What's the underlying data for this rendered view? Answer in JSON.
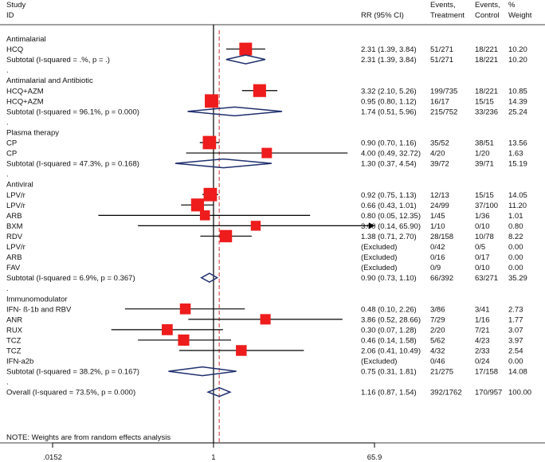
{
  "chart_data": {
    "type": "forest",
    "x_scale": "log",
    "x_ticks": [
      {
        "value": 0.0152,
        "label": ".0152"
      },
      {
        "value": 1,
        "label": "1"
      },
      {
        "value": 65.9,
        "label": "65.9"
      }
    ],
    "xlim": [
      0.0152,
      65.9
    ],
    "overall_estimate": 1.16,
    "headers": {
      "study_line1": "Study",
      "study_line2": "ID",
      "rr": "RR (95% CI)",
      "events_t_line1": "Events,",
      "events_t_line2": "Treatment",
      "events_c_line1": "Events,",
      "events_c_line2": "Control",
      "weight_line1": "%",
      "weight_line2": "Weight"
    },
    "footnote": "NOTE: Weights are from random effects analysis",
    "colors": {
      "box": "#ee1c1c",
      "diamond": "#1f2f6e",
      "null_line": "#000000",
      "overall_line": "#cc2a2a"
    },
    "rows": [
      {
        "kind": "group",
        "label": "Antimalarial"
      },
      {
        "kind": "study",
        "label": "HCQ",
        "rr": 2.31,
        "lo": 1.39,
        "hi": 3.84,
        "text": "2.31 (1.39, 3.84)",
        "events_t": "51/271",
        "events_c": "18/221",
        "weight": "10.20"
      },
      {
        "kind": "subtotal",
        "label": "Subtotal  (I-squared = .%, p = .)",
        "rr": 2.31,
        "lo": 1.39,
        "hi": 3.84,
        "text": "2.31 (1.39, 3.84)",
        "events_t": "51/271",
        "events_c": "18/221",
        "weight": "10.20"
      },
      {
        "kind": "dot",
        "label": "."
      },
      {
        "kind": "group",
        "label": "Antimalarial and Antibiotic"
      },
      {
        "kind": "study",
        "label": "HCQ+AZM",
        "rr": 3.32,
        "lo": 2.1,
        "hi": 5.26,
        "text": "3.32 (2.10, 5.26)",
        "events_t": "199/735",
        "events_c": "18/221",
        "weight": "10.85"
      },
      {
        "kind": "study",
        "label": "HCQ+AZM",
        "rr": 0.95,
        "lo": 0.8,
        "hi": 1.12,
        "text": "0.95 (0.80, 1.12)",
        "events_t": "16/17",
        "events_c": "15/15",
        "weight": "14.39"
      },
      {
        "kind": "subtotal",
        "label": "Subtotal  (I-squared = 96.1%, p = 0.000)",
        "rr": 1.74,
        "lo": 0.51,
        "hi": 5.96,
        "text": "1.74 (0.51, 5.96)",
        "events_t": "215/752",
        "events_c": "33/236",
        "weight": "25.24"
      },
      {
        "kind": "dot",
        "label": "."
      },
      {
        "kind": "group",
        "label": "Plasma therapy"
      },
      {
        "kind": "study",
        "label": "CP",
        "rr": 0.9,
        "lo": 0.7,
        "hi": 1.16,
        "text": "0.90 (0.70, 1.16)",
        "events_t": "35/52",
        "events_c": "38/51",
        "weight": "13.56"
      },
      {
        "kind": "study",
        "label": "CP",
        "rr": 4.0,
        "lo": 0.49,
        "hi": 32.72,
        "text": "4.00 (0.49, 32.72)",
        "events_t": "4/20",
        "events_c": "1/20",
        "weight": "1.63"
      },
      {
        "kind": "subtotal",
        "label": "Subtotal  (I-squared = 47.3%, p = 0.168)",
        "rr": 1.3,
        "lo": 0.37,
        "hi": 4.54,
        "text": "1.30 (0.37, 4.54)",
        "events_t": "39/72",
        "events_c": "39/71",
        "weight": "15.19"
      },
      {
        "kind": "dot",
        "label": "."
      },
      {
        "kind": "group",
        "label": "Antiviral"
      },
      {
        "kind": "study",
        "label": "LPV/r",
        "rr": 0.92,
        "lo": 0.75,
        "hi": 1.13,
        "text": "0.92 (0.75, 1.13)",
        "events_t": "12/13",
        "events_c": "15/15",
        "weight": "14.05"
      },
      {
        "kind": "study",
        "label": "LPV/r",
        "rr": 0.66,
        "lo": 0.43,
        "hi": 1.01,
        "text": "0.66 (0.43, 1.01)",
        "events_t": "24/99",
        "events_c": "37/100",
        "weight": "11.20"
      },
      {
        "kind": "study",
        "label": "ARB",
        "rr": 0.8,
        "lo": 0.05,
        "hi": 12.35,
        "text": "0.80 (0.05, 12.35)",
        "events_t": "1/45",
        "events_c": "1/36",
        "weight": "1.01"
      },
      {
        "kind": "study",
        "label": "BXM",
        "rr": 3.0,
        "lo": 0.14,
        "hi": 65.9,
        "text": "3.00 (0.14, 65.90)",
        "events_t": "1/10",
        "events_c": "0/10",
        "weight": "0.80",
        "arrow": true
      },
      {
        "kind": "study",
        "label": "RDV",
        "rr": 1.38,
        "lo": 0.71,
        "hi": 2.7,
        "text": "1.38 (0.71, 2.70)",
        "events_t": "28/158",
        "events_c": "10/78",
        "weight": "8.22"
      },
      {
        "kind": "study",
        "label": "LPV/r",
        "text": "(Excluded)",
        "events_t": "0/42",
        "events_c": "0/5",
        "weight": "0.00"
      },
      {
        "kind": "study",
        "label": "ARB",
        "text": "(Excluded)",
        "events_t": "0/16",
        "events_c": "0/17",
        "weight": "0.00"
      },
      {
        "kind": "study",
        "label": "FAV",
        "text": "(Excluded)",
        "events_t": "0/9",
        "events_c": "0/10",
        "weight": "0.00"
      },
      {
        "kind": "subtotal",
        "label": "Subtotal  (I-squared = 6.9%, p = 0.367)",
        "rr": 0.9,
        "lo": 0.73,
        "hi": 1.1,
        "text": "0.90 (0.73, 1.10)",
        "events_t": "66/392",
        "events_c": "63/271",
        "weight": "35.29"
      },
      {
        "kind": "dot",
        "label": "."
      },
      {
        "kind": "group",
        "label": "Immunomodulator"
      },
      {
        "kind": "study",
        "label": "IFN- ß-1b and RBV",
        "rr": 0.48,
        "lo": 0.1,
        "hi": 2.26,
        "text": "0.48 (0.10, 2.26)",
        "events_t": "3/86",
        "events_c": "3/41",
        "weight": "2.73"
      },
      {
        "kind": "study",
        "label": "ANR",
        "rr": 3.86,
        "lo": 0.52,
        "hi": 28.66,
        "text": "3.86 (0.52, 28.66)",
        "events_t": "7/29",
        "events_c": "1/16",
        "weight": "1.77"
      },
      {
        "kind": "study",
        "label": "RUX",
        "rr": 0.3,
        "lo": 0.07,
        "hi": 1.28,
        "text": "0.30 (0.07, 1.28)",
        "events_t": "2/20",
        "events_c": "7/21",
        "weight": "3.07"
      },
      {
        "kind": "study",
        "label": "TCZ",
        "rr": 0.46,
        "lo": 0.14,
        "hi": 1.58,
        "text": "0.46 (0.14, 1.58)",
        "events_t": "5/62",
        "events_c": "4/23",
        "weight": "3.97"
      },
      {
        "kind": "study",
        "label": "TCZ",
        "rr": 2.06,
        "lo": 0.41,
        "hi": 10.49,
        "text": "2.06 (0.41, 10.49)",
        "events_t": "4/32",
        "events_c": "2/33",
        "weight": "2.54"
      },
      {
        "kind": "study",
        "label": "IFN-a2b",
        "text": "(Excluded)",
        "events_t": "0/46",
        "events_c": "0/24",
        "weight": "0.00"
      },
      {
        "kind": "subtotal",
        "label": "Subtotal  (I-squared = 38.2%, p = 0.167)",
        "rr": 0.75,
        "lo": 0.31,
        "hi": 1.81,
        "text": "0.75 (0.31, 1.81)",
        "events_t": "21/275",
        "events_c": "17/158",
        "weight": "14.08"
      },
      {
        "kind": "dot",
        "label": "."
      },
      {
        "kind": "overall",
        "label": "Overall  (I-squared = 73.5%, p = 0.000)",
        "rr": 1.16,
        "lo": 0.87,
        "hi": 1.54,
        "text": "1.16 (0.87, 1.54)",
        "events_t": "392/1762",
        "events_c": "170/957",
        "weight": "100.00"
      }
    ]
  }
}
